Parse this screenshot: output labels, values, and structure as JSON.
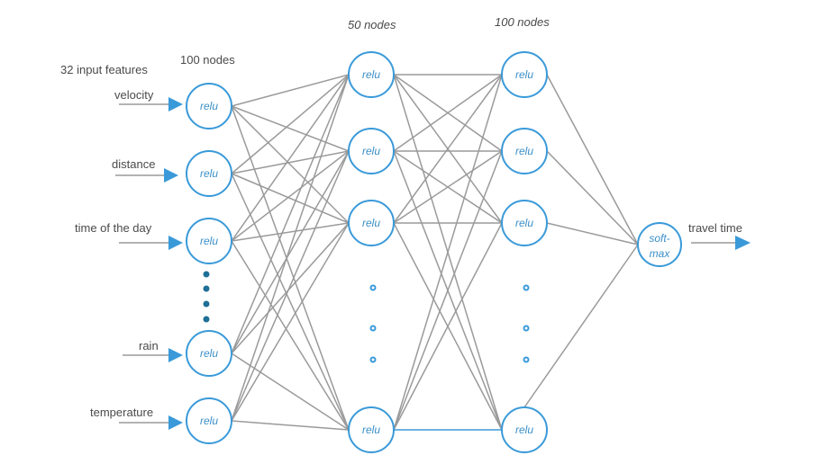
{
  "headers": {
    "input_features": "32  input features",
    "layer1": "100 nodes",
    "layer2": "50 nodes",
    "layer3": "100 nodes"
  },
  "inputs": [
    {
      "label": "velocity"
    },
    {
      "label": "distance"
    },
    {
      "label": "time of the day"
    },
    {
      "label": "rain"
    },
    {
      "label": "temperature"
    }
  ],
  "activation_label": "relu",
  "output": {
    "node_line1": "soft-",
    "node_line2": "max",
    "label": "travel time"
  },
  "colors": {
    "node_stroke": "#3a9ad9",
    "node_text": "#3a8fc8",
    "edge": "#9a9a9a",
    "arrow": "#3a9ad9",
    "ellipsis_dot": "#1f6f96"
  }
}
